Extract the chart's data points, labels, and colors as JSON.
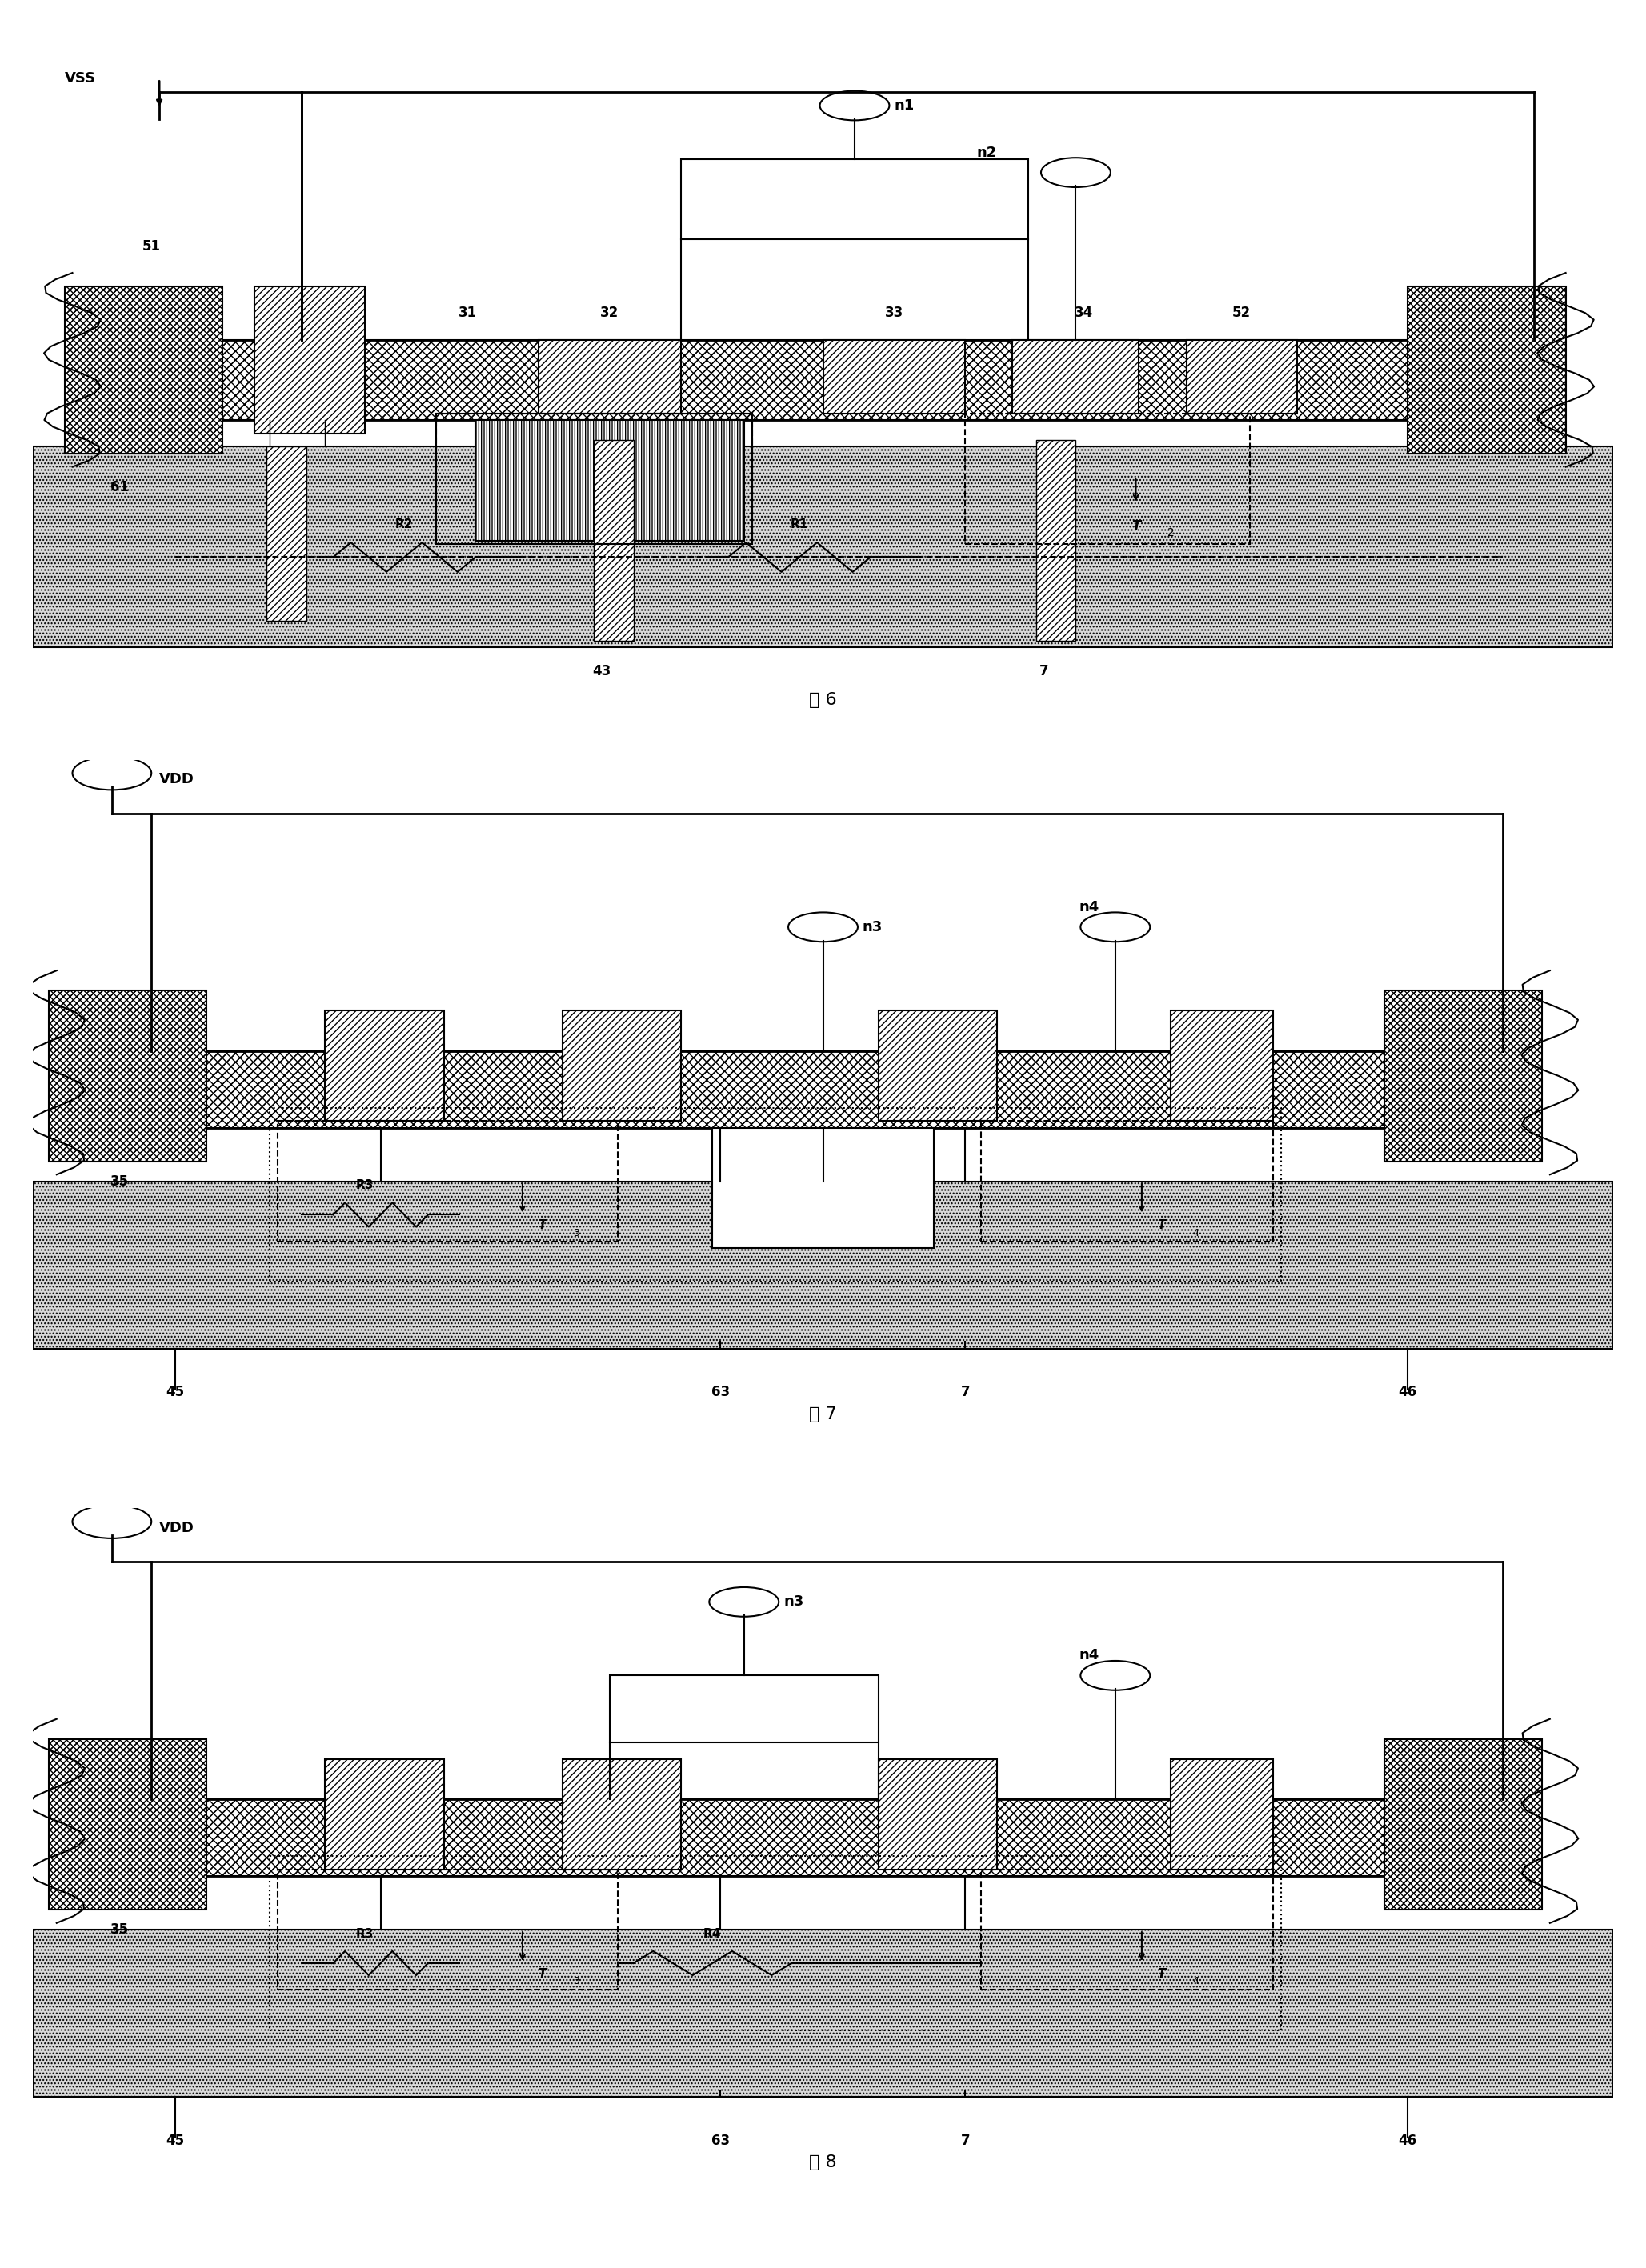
{
  "fig_width": 20.57,
  "fig_height": 28.35,
  "bg_color": "#ffffff",
  "titles": [
    "图 6",
    "图 7",
    "图 8"
  ],
  "substrate_color": "#d8d8d8",
  "pad_hatch_diag": "////",
  "pad_hatch_cross": "xxxx",
  "bus_hatch": "xxxx",
  "gate_hatch": "||||",
  "pillar_hatch": "////",
  "dot_hatch": "...."
}
